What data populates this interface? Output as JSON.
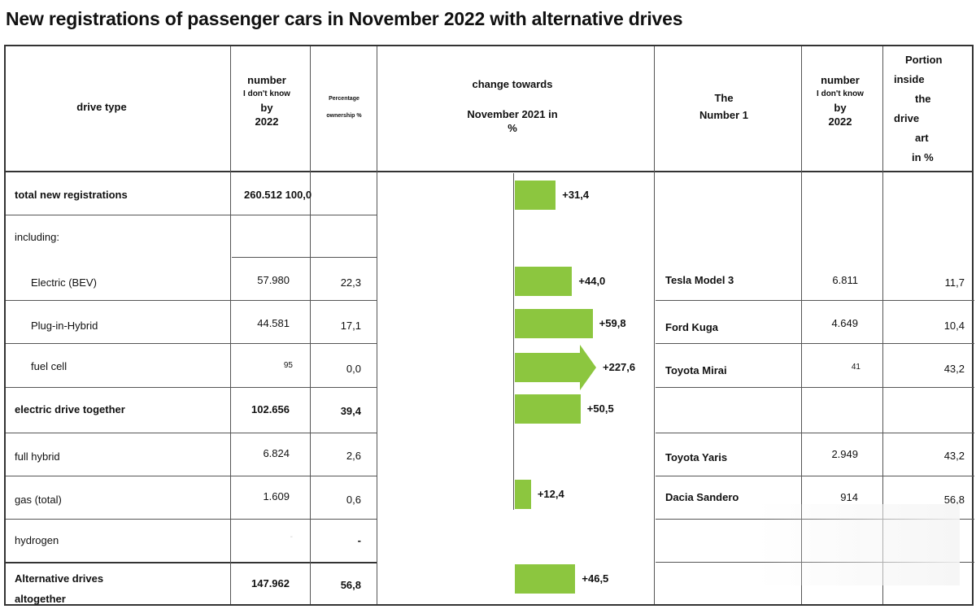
{
  "title": "New registrations of passenger cars in November 2022 with alternative drives",
  "header": {
    "drive_type": "drive type",
    "number_l1": "number",
    "number_l2": "I don't know",
    "number_l3": "by",
    "number_l4": "2022",
    "pct_l1": "Percentage",
    "pct_l2": "ownership %",
    "change_l1": "change towards",
    "change_l2": "November 2021 in",
    "change_l3": "%",
    "top_l1": "The",
    "top_l2": "Number 1",
    "top_number_l1": "number",
    "top_number_l2": "I don't know",
    "top_number_l3": "by",
    "top_number_l4": "2022",
    "portion_l1": "Portion",
    "portion_l2": "inside",
    "portion_l3": "the",
    "portion_l4": "drive",
    "portion_l5": "art",
    "portion_l6": "in %"
  },
  "rows": [
    {
      "label": "total new registrations",
      "number": "260.512 100,0",
      "pct": "",
      "change": "+31,4",
      "change_value": 31.4,
      "top_model": "",
      "top_number": "",
      "portion": ""
    },
    {
      "label": "including:",
      "number": "",
      "pct": "",
      "change": "",
      "top_model": "",
      "top_number": "",
      "portion": ""
    },
    {
      "label": "Electric (BEV)",
      "number": "57.980",
      "pct": "22,3",
      "change": "+44,0",
      "change_value": 44.0,
      "top_model": "Tesla Model 3",
      "top_number": "6.811",
      "portion": "11,7"
    },
    {
      "label": "Plug-in-Hybrid",
      "number": "44.581",
      "pct": "17,1",
      "change": "+59,8",
      "change_value": 59.8,
      "top_model": "Ford Kuga",
      "top_number": "4.649",
      "portion": "10,4"
    },
    {
      "label": "fuel cell",
      "number": "95",
      "pct": "0,0",
      "change": "+227,6",
      "change_value": 227.6,
      "top_model": "Toyota Mirai",
      "top_number": "41",
      "portion": "43,2"
    },
    {
      "label": "electric drive together",
      "number": "102.656",
      "pct": "39,4",
      "change": "+50,5",
      "change_value": 50.5,
      "top_model": "",
      "top_number": "",
      "portion": ""
    },
    {
      "label": "full hybrid",
      "number": "6.824",
      "pct": "2,6",
      "change": "",
      "top_model": "Toyota Yaris",
      "top_number": "2.949",
      "portion": "43,2"
    },
    {
      "label": "gas (total)",
      "number": "1.609",
      "pct": "0,6",
      "change": "+12,4",
      "change_value": 12.4,
      "top_model": "Dacia Sandero",
      "top_number": "914",
      "portion": "56,8"
    },
    {
      "label": "hydrogen",
      "number": "-",
      "pct": "-",
      "change": "",
      "top_model": "",
      "top_number": "",
      "portion": ""
    },
    {
      "label_l1": "Alternative drives",
      "label_l2": "altogether",
      "number": "147.962",
      "pct": "56,8",
      "change": "+46,5",
      "change_value": 46.5,
      "top_model": "",
      "top_number": "",
      "portion": ""
    }
  ],
  "colors": {
    "bar": "#8cc63f"
  }
}
